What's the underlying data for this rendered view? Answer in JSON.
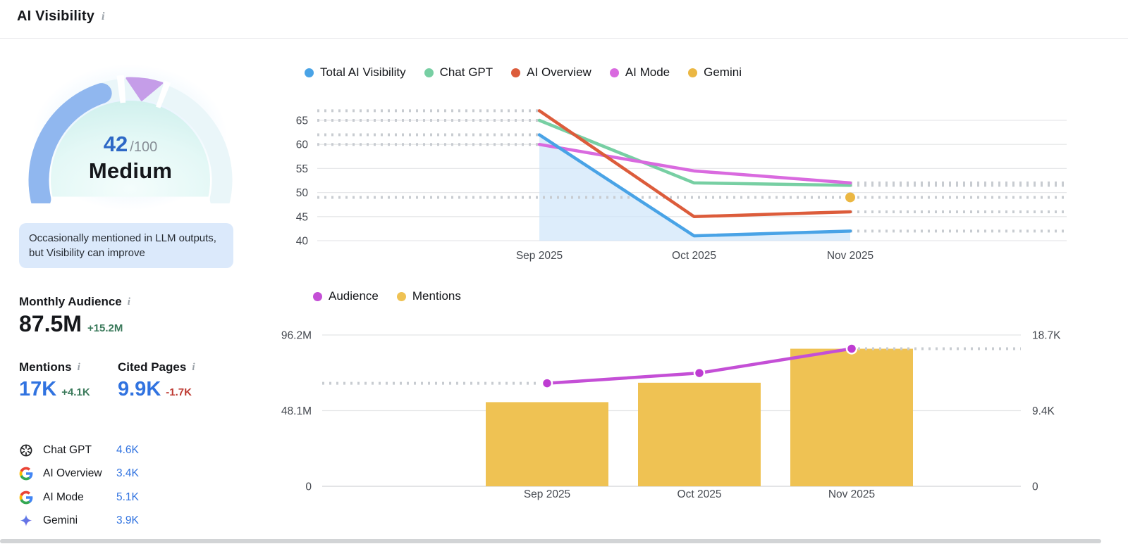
{
  "header": {
    "title": "AI Visibility"
  },
  "icons": {
    "info_glyph": "i"
  },
  "score_panel": {
    "score": "42",
    "score_value": 42,
    "score_max": "/100",
    "score_label": "Medium",
    "description": "Occasionally mentioned in LLM outputs, but Visibility can improve",
    "gauge_colors": {
      "fill": "#90b7ef",
      "marker": "#c59de8",
      "track": "#eaf6f9",
      "inner": "#ddf5f3"
    }
  },
  "stats": {
    "monthly_audience": {
      "label": "Monthly Audience",
      "value": "87.5M",
      "delta": "+15.2M",
      "delta_direction": "up"
    },
    "mentions": {
      "label": "Mentions",
      "value": "17K",
      "delta": "+4.1K",
      "delta_direction": "up"
    },
    "cited_pages": {
      "label": "Cited Pages",
      "value": "9.9K",
      "delta": "-1.7K",
      "delta_direction": "down"
    }
  },
  "platforms": [
    {
      "icon": "chatgpt-logo",
      "label": "Chat GPT",
      "value": "4.6K"
    },
    {
      "icon": "google-logo",
      "label": "AI Overview",
      "value": "3.4K"
    },
    {
      "icon": "google-logo",
      "label": "AI Mode",
      "value": "5.1K"
    },
    {
      "icon": "gemini-logo",
      "label": "Gemini",
      "value": "3.9K"
    }
  ],
  "chart_data": [
    {
      "type": "line",
      "title": "AI Visibility trend",
      "categories": [
        "Sep 2025",
        "Oct 2025",
        "Nov 2025"
      ],
      "yticks": [
        40,
        45,
        50,
        55,
        60,
        65
      ],
      "ylim": [
        40,
        68
      ],
      "grid": true,
      "legend_position": "top",
      "series": [
        {
          "name": "Total AI Visibility",
          "color": "#49a3e6",
          "values": [
            62,
            41,
            42
          ],
          "area": true,
          "area_color": "#cfe5f9"
        },
        {
          "name": "Chat GPT",
          "color": "#77cfa3",
          "values": [
            65,
            52,
            51.5
          ]
        },
        {
          "name": "AI Overview",
          "color": "#dc5c3b",
          "values": [
            67,
            45,
            46
          ]
        },
        {
          "name": "AI Mode",
          "color": "#d96adf",
          "values": [
            60,
            54.5,
            52
          ]
        },
        {
          "name": "Gemini",
          "color": "#ebb743",
          "values": [
            null,
            null,
            49
          ]
        }
      ],
      "annotations": "dotted gray leader lines run from chart edges to the first and last points of each series"
    },
    {
      "type": "bar+line",
      "title": "Audience and Mentions",
      "categories": [
        "Sep 2025",
        "Oct 2025",
        "Nov 2025"
      ],
      "left_axis": {
        "name": "Audience",
        "ticks": [
          "0",
          "48.1M",
          "96.2M"
        ],
        "max_millions": 96.2
      },
      "right_axis": {
        "name": "Mentions",
        "ticks": [
          "0",
          "9.4K",
          "18.7K"
        ],
        "max_thousands": 18.7
      },
      "legend_position": "top",
      "series": [
        {
          "name": "Audience",
          "chart": "line",
          "axis": "left",
          "color": "#c44fd6",
          "dot_color": "#be3cd2",
          "values_millions": [
            65.5,
            72,
            87.5
          ]
        },
        {
          "name": "Mentions",
          "chart": "bar",
          "axis": "right",
          "color": "#efc253",
          "values_thousands": [
            10.4,
            12.8,
            17
          ]
        }
      ]
    }
  ]
}
